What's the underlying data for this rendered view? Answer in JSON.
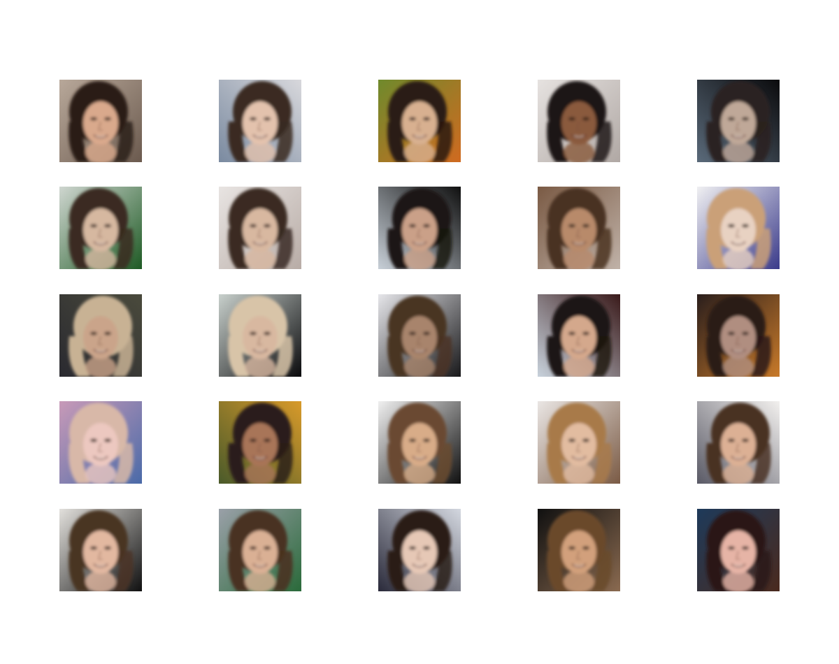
{
  "figure": {
    "kind": "generated-face-sample-grid",
    "rows": 5,
    "cols": 5,
    "background": "#ffffff",
    "samples": [
      {
        "bg": "#b8a89a",
        "bg2": "#6b5a4e",
        "hair": "#2b1f18",
        "skin": "#d9a98c"
      },
      {
        "bg": "#d8d8dc",
        "bg2": "#7a8aa0",
        "hair": "#3a2a22",
        "skin": "#e3c2ad"
      },
      {
        "bg": "#6f8a2c",
        "bg2": "#d06a20",
        "hair": "#2a1a12",
        "skin": "#d8b090"
      },
      {
        "bg": "#e6e2e0",
        "bg2": "#b0a8a4",
        "hair": "#1e1814",
        "skin": "#8a5a3c"
      },
      {
        "bg": "#0b0b0d",
        "bg2": "#5a6a7a",
        "hair": "#2a2220",
        "skin": "#bfa898"
      },
      {
        "bg": "#cfd6d0",
        "bg2": "#1e5a24",
        "hair": "#3a2a20",
        "skin": "#d6b8a0"
      },
      {
        "bg": "#e8e4e2",
        "bg2": "#b8aca6",
        "hair": "#3a2c24",
        "skin": "#d8b8a0"
      },
      {
        "bg": "#101010",
        "bg2": "#c8d0d8",
        "hair": "#1a1412",
        "skin": "#caa088"
      },
      {
        "bg": "#7a5a44",
        "bg2": "#c0b2a8",
        "hair": "#4a3222",
        "skin": "#b88a6a"
      },
      {
        "bg": "#f0f0f2",
        "bg2": "#3a3a8a",
        "hair": "#caa078",
        "skin": "#e8d2c2"
      },
      {
        "bg": "#4a4a3c",
        "bg2": "#2a2a30",
        "hair": "#c8b294",
        "skin": "#caa48a"
      },
      {
        "bg": "#c8d0cc",
        "bg2": "#0a0a0c",
        "hair": "#d8c4a8",
        "skin": "#d8b8a0"
      },
      {
        "bg": "#e6e6ea",
        "bg2": "#18181a",
        "hair": "#4a3424",
        "skin": "#a8846c"
      },
      {
        "bg": "#3a1a1a",
        "bg2": "#c8d2dc",
        "hair": "#1c1412",
        "skin": "#d4a88c"
      },
      {
        "bg": "#2a1e1c",
        "bg2": "#c87a2a",
        "hair": "#2a1a14",
        "skin": "#b08e80"
      },
      {
        "bg": "#c89ab8",
        "bg2": "#4a6aa8",
        "hair": "#d8b8a8",
        "skin": "#ecc8c0"
      },
      {
        "bg": "#d89a2a",
        "bg2": "#4a5a2a",
        "hair": "#2a1e1a",
        "skin": "#a87458"
      },
      {
        "bg": "#f0f0f0",
        "bg2": "#101010",
        "hair": "#6a4a30",
        "skin": "#d8ac88"
      },
      {
        "bg": "#eae6e4",
        "bg2": "#7a5a44",
        "hair": "#a87a4a",
        "skin": "#e2bca0"
      },
      {
        "bg": "#f2f0ee",
        "bg2": "#5a5a66",
        "hair": "#4a3224",
        "skin": "#dcb094"
      },
      {
        "bg": "#e2e0dc",
        "bg2": "#101010",
        "hair": "#4a3424",
        "skin": "#e2b8a0"
      },
      {
        "bg": "#9aa0a8",
        "bg2": "#2a6a3a",
        "hair": "#4a3020",
        "skin": "#dab094"
      },
      {
        "bg": "#d4d8e0",
        "bg2": "#2a2a3a",
        "hair": "#2a1c16",
        "skin": "#e6c8b6"
      },
      {
        "bg": "#101010",
        "bg2": "#8a6a50",
        "hair": "#6a4a2a",
        "skin": "#d2a07c"
      },
      {
        "bg": "#1e3a5a",
        "bg2": "#4a2a1e",
        "hair": "#2a1814",
        "skin": "#e6b4a6"
      }
    ]
  }
}
